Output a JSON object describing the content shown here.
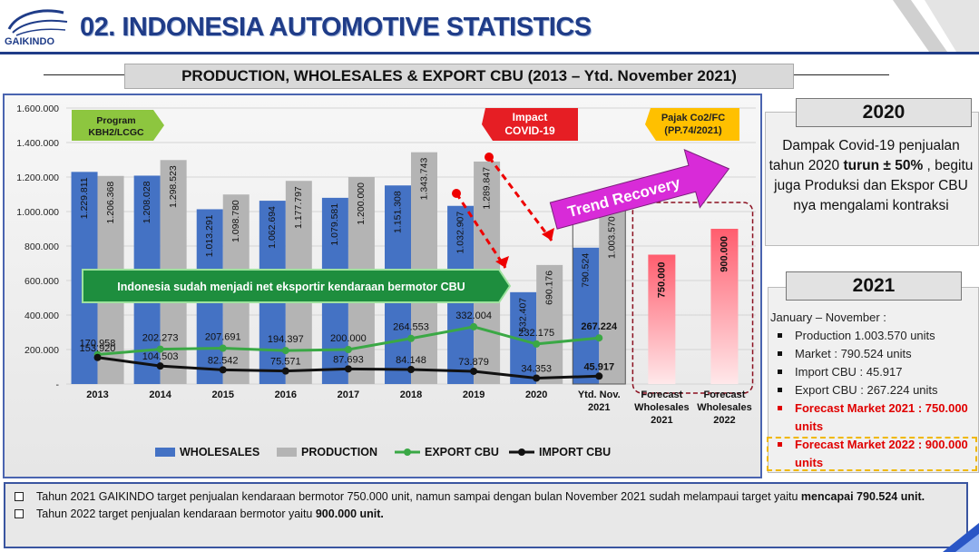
{
  "header": {
    "title": "02. INDONESIA AUTOMOTIVE STATISTICS",
    "logo_text": "GAIKINDO"
  },
  "banner": {
    "title": "PRODUCTION, WHOLESALES & EXPORT CBU (2013 – Ytd. November 2021)"
  },
  "chart_data": {
    "type": "bar",
    "categories": [
      "2013",
      "2014",
      "2015",
      "2016",
      "2017",
      "2018",
      "2019",
      "2020",
      "Ytd. Nov. 2021",
      "Forecast Wholesales 2021",
      "Forecast Wholesales 2022"
    ],
    "category_lines": [
      [
        "2013"
      ],
      [
        "2014"
      ],
      [
        "2015"
      ],
      [
        "2016"
      ],
      [
        "2017"
      ],
      [
        "2018"
      ],
      [
        "2019"
      ],
      [
        "2020"
      ],
      [
        "Ytd. Nov.",
        "2021"
      ],
      [
        "Forecast",
        "Wholesales",
        "2021"
      ],
      [
        "Forecast",
        "Wholesales",
        "2022"
      ]
    ],
    "ylim": [
      0,
      1600000
    ],
    "yticks": [
      "-",
      "200.000",
      "400.000",
      "600.000",
      "800.000",
      "1.000.000",
      "1.200.000",
      "1.400.000",
      "1.600.000"
    ],
    "series": [
      {
        "name": "WHOLESALES",
        "type": "bar",
        "color": "#4472c4",
        "values": [
          1229811,
          1208028,
          1013291,
          1062694,
          1079581,
          1151308,
          1032907,
          532407,
          790524,
          null,
          null
        ],
        "labels": [
          "1.229.811",
          "1.208.028",
          "1.013.291",
          "1.062.694",
          "1.079.581",
          "1.151.308",
          "1.032.907",
          "532.407",
          "790.524",
          "",
          ""
        ]
      },
      {
        "name": "PRODUCTION",
        "type": "bar",
        "color": "#b4b4b4",
        "values": [
          1206368,
          1298523,
          1098780,
          1177797,
          1200000,
          1343743,
          1289847,
          690176,
          1003570,
          null,
          null
        ],
        "labels": [
          "1.206.368",
          "1.298.523",
          "1.098.780",
          "1.177.797",
          "1.200.000",
          "1.343.743",
          "1.289.847",
          "690.176",
          "1.003.570",
          "",
          ""
        ]
      },
      {
        "name": "EXPORT CBU",
        "type": "line",
        "color": "#3aa845",
        "values": [
          170958,
          202273,
          207691,
          194397,
          200000,
          264553,
          332004,
          232175,
          267224,
          null,
          null
        ],
        "labels": [
          "170.958",
          "202.273",
          "207.691",
          "194.397",
          "200.000",
          "264.553",
          "332.004",
          "232.175",
          "267.224",
          "",
          ""
        ]
      },
      {
        "name": "IMPORT CBU",
        "type": "line",
        "color": "#111111",
        "values": [
          153920,
          104503,
          82542,
          75571,
          87693,
          84148,
          73879,
          34353,
          45917,
          null,
          null
        ],
        "labels": [
          "153.920",
          "104.503",
          "82.542",
          "75.571",
          "87.693",
          "84.148",
          "73.879",
          "34.353",
          "45.917",
          "",
          ""
        ]
      },
      {
        "name": "Forecast",
        "type": "bar",
        "color": "#ff6a7a",
        "values": [
          null,
          null,
          null,
          null,
          null,
          null,
          null,
          null,
          null,
          750000,
          900000
        ],
        "labels": [
          "",
          "",
          "",
          "",
          "",
          "",
          "",
          "",
          "",
          "750.000",
          "900.000"
        ]
      }
    ],
    "annotations": {
      "program": "Program KBH2/LCGC",
      "program_lines": [
        "Program",
        "KBH2/LCGC"
      ],
      "covid": "Impact COVID-19",
      "covid_lines": [
        "Impact",
        "COVID-19"
      ],
      "pajak": "Pajak Co2/FC (PP.74/2021)",
      "pajak_lines": [
        "Pajak Co2/FC",
        "(PP.74/2021)"
      ],
      "trend": "Trend Recovery",
      "net_export": "Indonesia sudah menjadi net eksportir kendaraan bermotor CBU"
    },
    "legend_position": "bottom"
  },
  "box2020": {
    "title": "2020",
    "text_before": "Dampak Covid-19 penjualan tahun 2020 ",
    "text_bold": "turun ± 50% ",
    "text_after": ", begitu juga Produksi dan Ekspor CBU nya mengalami kontraksi"
  },
  "box2021": {
    "title": "2021",
    "period": "January – November  :",
    "items": [
      {
        "text": "Production  1.003.570 units"
      },
      {
        "text": "Market :   790.524  units"
      },
      {
        "text": "Import CBU : 45.917"
      },
      {
        "text": "Export CBU :  267.224 units"
      },
      {
        "text": "Forecast Market 2021 : 750.000 units"
      },
      {
        "text": "Forecast Market 2022 : 900.000 units"
      }
    ]
  },
  "bottom": {
    "line1_text": "Tahun 2021 GAIKINDO target penjualan kendaraan bermotor 750.000 unit, namun sampai dengan bulan November 2021 sudah melampaui target yaitu ",
    "line1_bold": "mencapai 790.524 unit.",
    "line2_text": "Tahun 2022 target penjualan kendaraan bermotor  yaitu ",
    "line2_bold": "900.000 unit."
  },
  "colors": {
    "brand": "#1f3c88",
    "forecast_red": "#e00000",
    "export_green": "#3aa845",
    "wholesales_blue": "#4472c4"
  }
}
